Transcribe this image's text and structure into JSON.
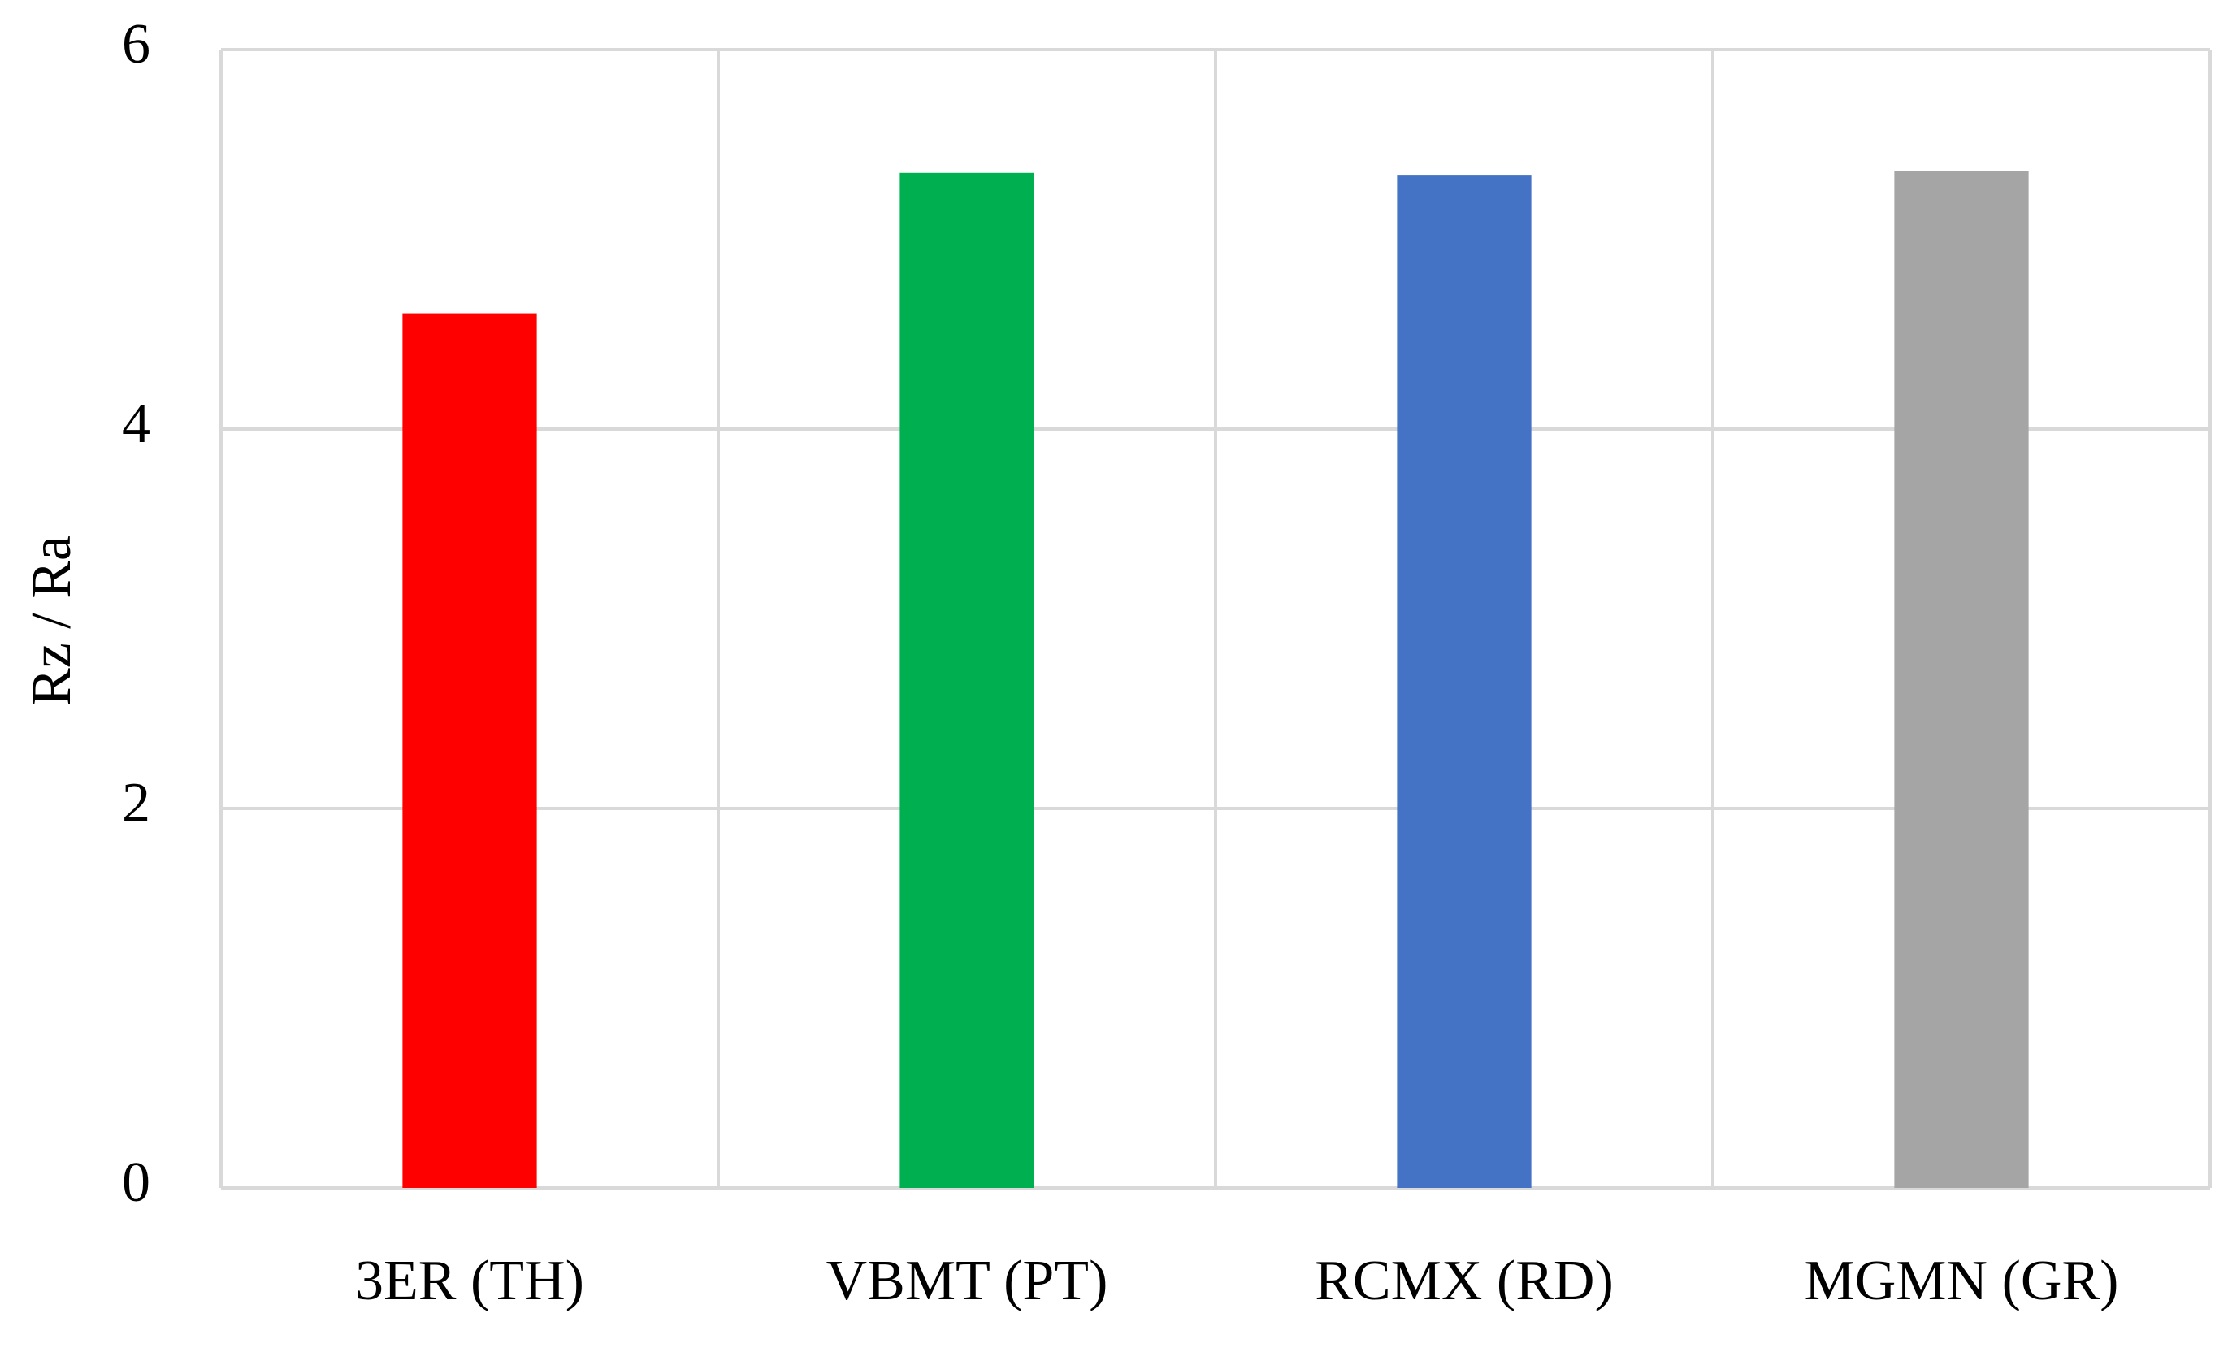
{
  "chart_data": {
    "type": "bar",
    "y_label": "Rz / Ra",
    "categories": [
      "3ER (TH)",
      "VBMT (PT)",
      "RCMX (RD)",
      "MGMN (GR)"
    ],
    "values": [
      4.61,
      5.35,
      5.34,
      5.36
    ],
    "colors": [
      "#ff0000",
      "#00b050",
      "#4472c4",
      "#a5a5a5"
    ],
    "ylim": [
      0,
      6
    ],
    "yticks": [
      0,
      2,
      4,
      6
    ],
    "grid": true
  }
}
